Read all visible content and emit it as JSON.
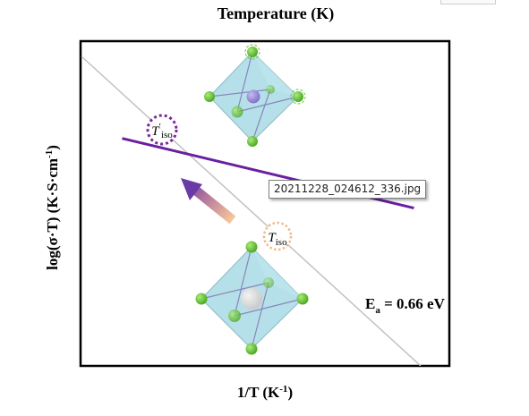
{
  "chart_data": {
    "type": "line",
    "top_axis_label": "Temperature (K)",
    "xlabel": "1/T (K",
    "xlabel_sup": "-1",
    "xlabel_end": ")",
    "ylabel": "log(σ·T) (K·S·cm",
    "ylabel_sup": "-1",
    "ylabel_end": ")",
    "series": [
      {
        "name": "",
        "color": "#c2c2c2",
        "x": [
          0.0,
          1.0
        ],
        "y": [
          1.0,
          0.0
        ]
      },
      {
        "name": "",
        "color": "#6a1fa0",
        "x": [
          0.12,
          0.98
        ],
        "y": [
          0.735,
          0.51
        ]
      }
    ],
    "annotations": {
      "t_iso_prime": {
        "base": "T",
        "prime": "′",
        "sub": "iso"
      },
      "t_iso": {
        "base": "T",
        "sub": "iso"
      },
      "activation_energy": {
        "base": "E",
        "sub": "a",
        "value": " = 0.66 eV"
      }
    },
    "colors": {
      "axes": "#000000",
      "purple_line": "#6a1fa0",
      "gray_line": "#c2c2c2",
      "marker_purple": "#7a2a9a",
      "marker_orange": "#f0b98a",
      "octahedron": "#a8dbe5",
      "anion": "#6cc63a",
      "cation_purple": "#8e7fd4",
      "cation_gray": "#d9d9d9"
    }
  },
  "tooltip": {
    "text": "20211228_024612_336.jpg"
  }
}
